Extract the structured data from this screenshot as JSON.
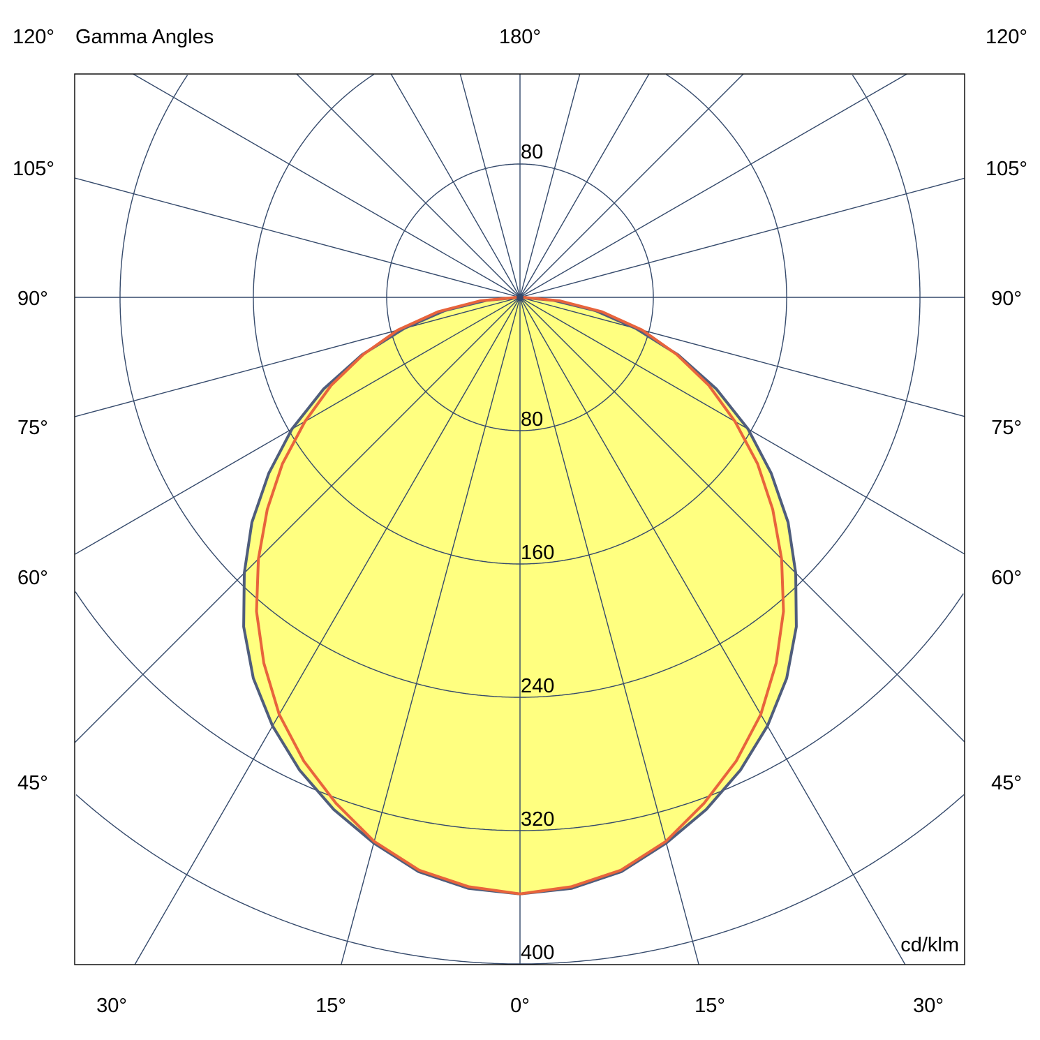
{
  "chart_data": {
    "type": "polar",
    "title": "Gamma Angles",
    "unit": "cd/klm",
    "radial_ticks": [
      80,
      160,
      240,
      320,
      400
    ],
    "radial_range": [
      0,
      400
    ],
    "top_ring_label": "80",
    "spoke_step_deg": 15,
    "grid": true,
    "corner_labels": {
      "top_left": "120°",
      "top_center": "180°",
      "top_right": "120°"
    },
    "side_labels": [
      "105°",
      "90°",
      "75°",
      "60°",
      "45°"
    ],
    "bottom_labels": [
      "30°",
      "15°",
      "0°",
      "15°",
      "30°"
    ],
    "angles": [
      0,
      5,
      10,
      15,
      20,
      25,
      30,
      35,
      40,
      45,
      50,
      55,
      60,
      65,
      70,
      75,
      80,
      85,
      90
    ],
    "series": [
      {
        "color": "#4f5d7c",
        "filled": true,
        "values": [
          358,
          356,
          350,
          339,
          327,
          313,
          297,
          279,
          258,
          234,
          210,
          184,
          158,
          130,
          101,
          72,
          46,
          20,
          0
        ]
      },
      {
        "color": "#e8643c",
        "filled": false,
        "values": [
          358,
          355,
          349,
          338,
          323,
          307,
          289,
          268,
          246,
          222,
          198,
          174,
          149,
          125,
          100,
          76,
          50,
          24,
          2
        ]
      }
    ],
    "colors": {
      "grid": "#34496b",
      "fill": "#ffff80"
    }
  }
}
